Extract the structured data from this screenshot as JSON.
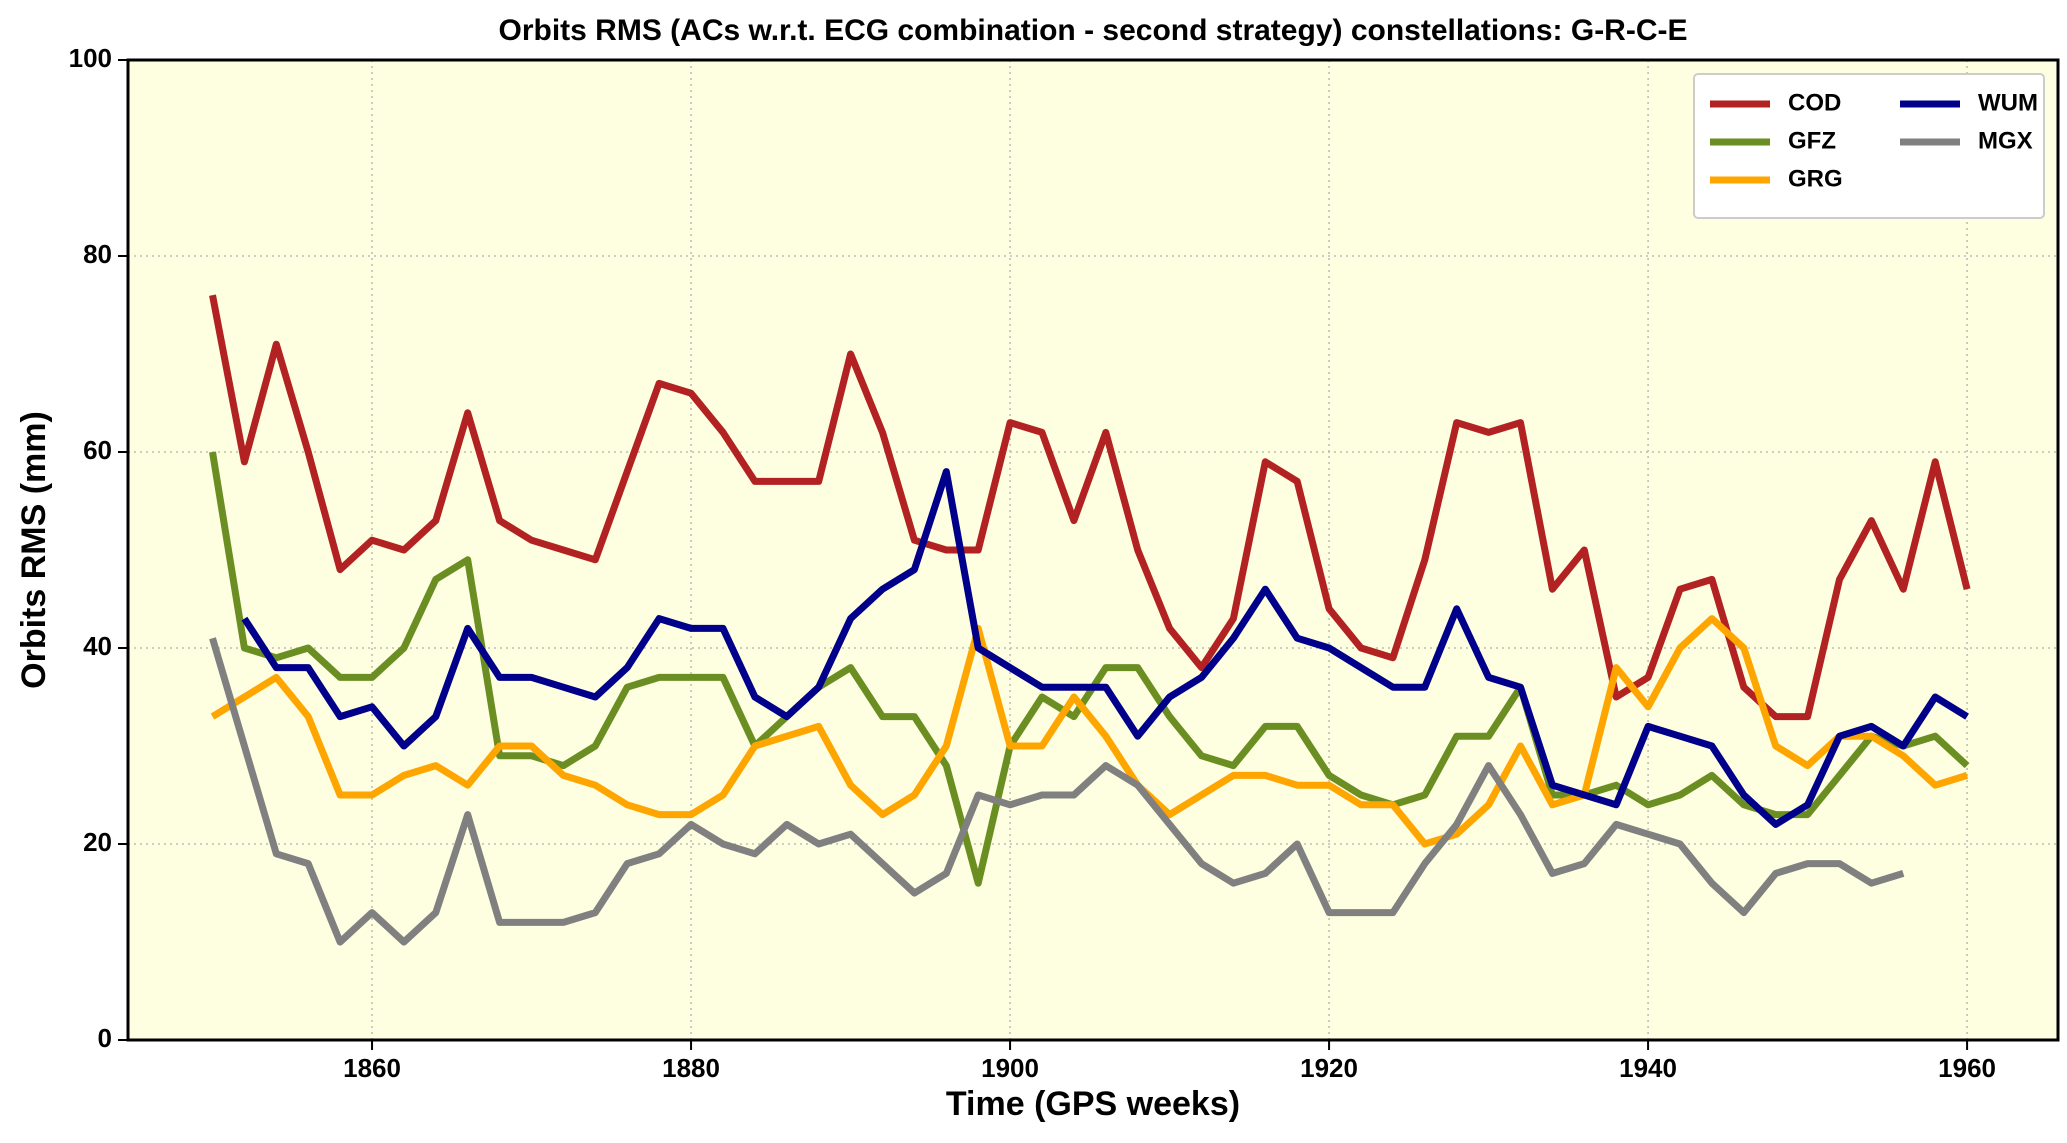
{
  "chart_data": {
    "type": "line",
    "title": "Orbits RMS (ACs w.r.t. ECG combination - second strategy) constellations: G-R-C-E",
    "xlabel": "Time (GPS weeks)",
    "ylabel": "Orbits RMS (mm)",
    "x": [
      1850,
      1852,
      1854,
      1856,
      1858,
      1860,
      1862,
      1864,
      1866,
      1868,
      1870,
      1872,
      1874,
      1876,
      1878,
      1880,
      1882,
      1884,
      1886,
      1888,
      1890,
      1892,
      1894,
      1896,
      1898,
      1900,
      1902,
      1904,
      1906,
      1908,
      1910,
      1912,
      1914,
      1916,
      1918,
      1920,
      1922,
      1924,
      1926,
      1928,
      1930,
      1932,
      1934,
      1936,
      1938,
      1940,
      1942,
      1944,
      1946,
      1948,
      1950,
      1952,
      1954,
      1956,
      1958,
      1960
    ],
    "series": [
      {
        "name": "COD",
        "color": "#b22222",
        "values": [
          76,
          59,
          71,
          60,
          48,
          51,
          50,
          53,
          64,
          53,
          51,
          50,
          49,
          58,
          67,
          66,
          62,
          57,
          57,
          57,
          70,
          62,
          51,
          50,
          50,
          63,
          62,
          53,
          62,
          50,
          42,
          38,
          43,
          59,
          57,
          44,
          40,
          39,
          49,
          63,
          62,
          63,
          46,
          50,
          35,
          37,
          46,
          47,
          36,
          33,
          33,
          47,
          53,
          46,
          59,
          46
        ]
      },
      {
        "name": "GFZ",
        "color": "#6b8e23",
        "values": [
          60,
          40,
          39,
          40,
          37,
          37,
          40,
          47,
          49,
          29,
          29,
          28,
          30,
          36,
          37,
          37,
          37,
          30,
          33,
          36,
          38,
          33,
          33,
          28,
          16,
          30,
          35,
          33,
          38,
          38,
          33,
          29,
          28,
          32,
          32,
          27,
          25,
          24,
          25,
          31,
          31,
          36,
          25,
          25,
          26,
          24,
          25,
          27,
          24,
          23,
          23,
          27,
          31,
          30,
          31,
          28
        ]
      },
      {
        "name": "GRG",
        "color": "#ffa500",
        "values": [
          33,
          35,
          37,
          33,
          25,
          25,
          27,
          28,
          26,
          30,
          30,
          27,
          26,
          24,
          23,
          23,
          25,
          30,
          31,
          32,
          26,
          23,
          25,
          30,
          42,
          30,
          30,
          35,
          31,
          26,
          23,
          25,
          27,
          27,
          26,
          26,
          24,
          24,
          20,
          21,
          24,
          30,
          24,
          25,
          38,
          34,
          40,
          43,
          40,
          30,
          28,
          31,
          31,
          29,
          26,
          27
        ]
      },
      {
        "name": "WUM",
        "color": "#00008b",
        "values": [
          null,
          43,
          38,
          38,
          33,
          34,
          30,
          33,
          42,
          37,
          37,
          36,
          35,
          38,
          43,
          42,
          42,
          35,
          33,
          36,
          43,
          46,
          48,
          58,
          40,
          38,
          36,
          36,
          36,
          31,
          35,
          37,
          41,
          46,
          41,
          40,
          38,
          36,
          36,
          44,
          37,
          36,
          26,
          25,
          24,
          32,
          31,
          30,
          25,
          22,
          24,
          31,
          32,
          30,
          35,
          33
        ]
      },
      {
        "name": "MGX",
        "color": "#808080",
        "values": [
          41,
          30,
          19,
          18,
          10,
          13,
          10,
          13,
          23,
          12,
          12,
          12,
          13,
          18,
          19,
          22,
          20,
          19,
          22,
          20,
          21,
          18,
          15,
          17,
          25,
          24,
          25,
          25,
          28,
          26,
          22,
          18,
          16,
          17,
          20,
          13,
          13,
          13,
          18,
          22,
          28,
          23,
          17,
          18,
          22,
          21,
          20,
          16,
          13,
          17,
          18,
          18,
          16,
          17,
          null,
          null
        ]
      }
    ],
    "xlim": [
      1844.7,
      1965.7
    ],
    "xticks": [
      1860,
      1880,
      1900,
      1920,
      1940,
      1960
    ],
    "ylim": [
      0,
      100
    ],
    "yticks": [
      0,
      20,
      40,
      60,
      80,
      100
    ],
    "grid": true,
    "legend": "upper right",
    "background": "#fefee0"
  }
}
